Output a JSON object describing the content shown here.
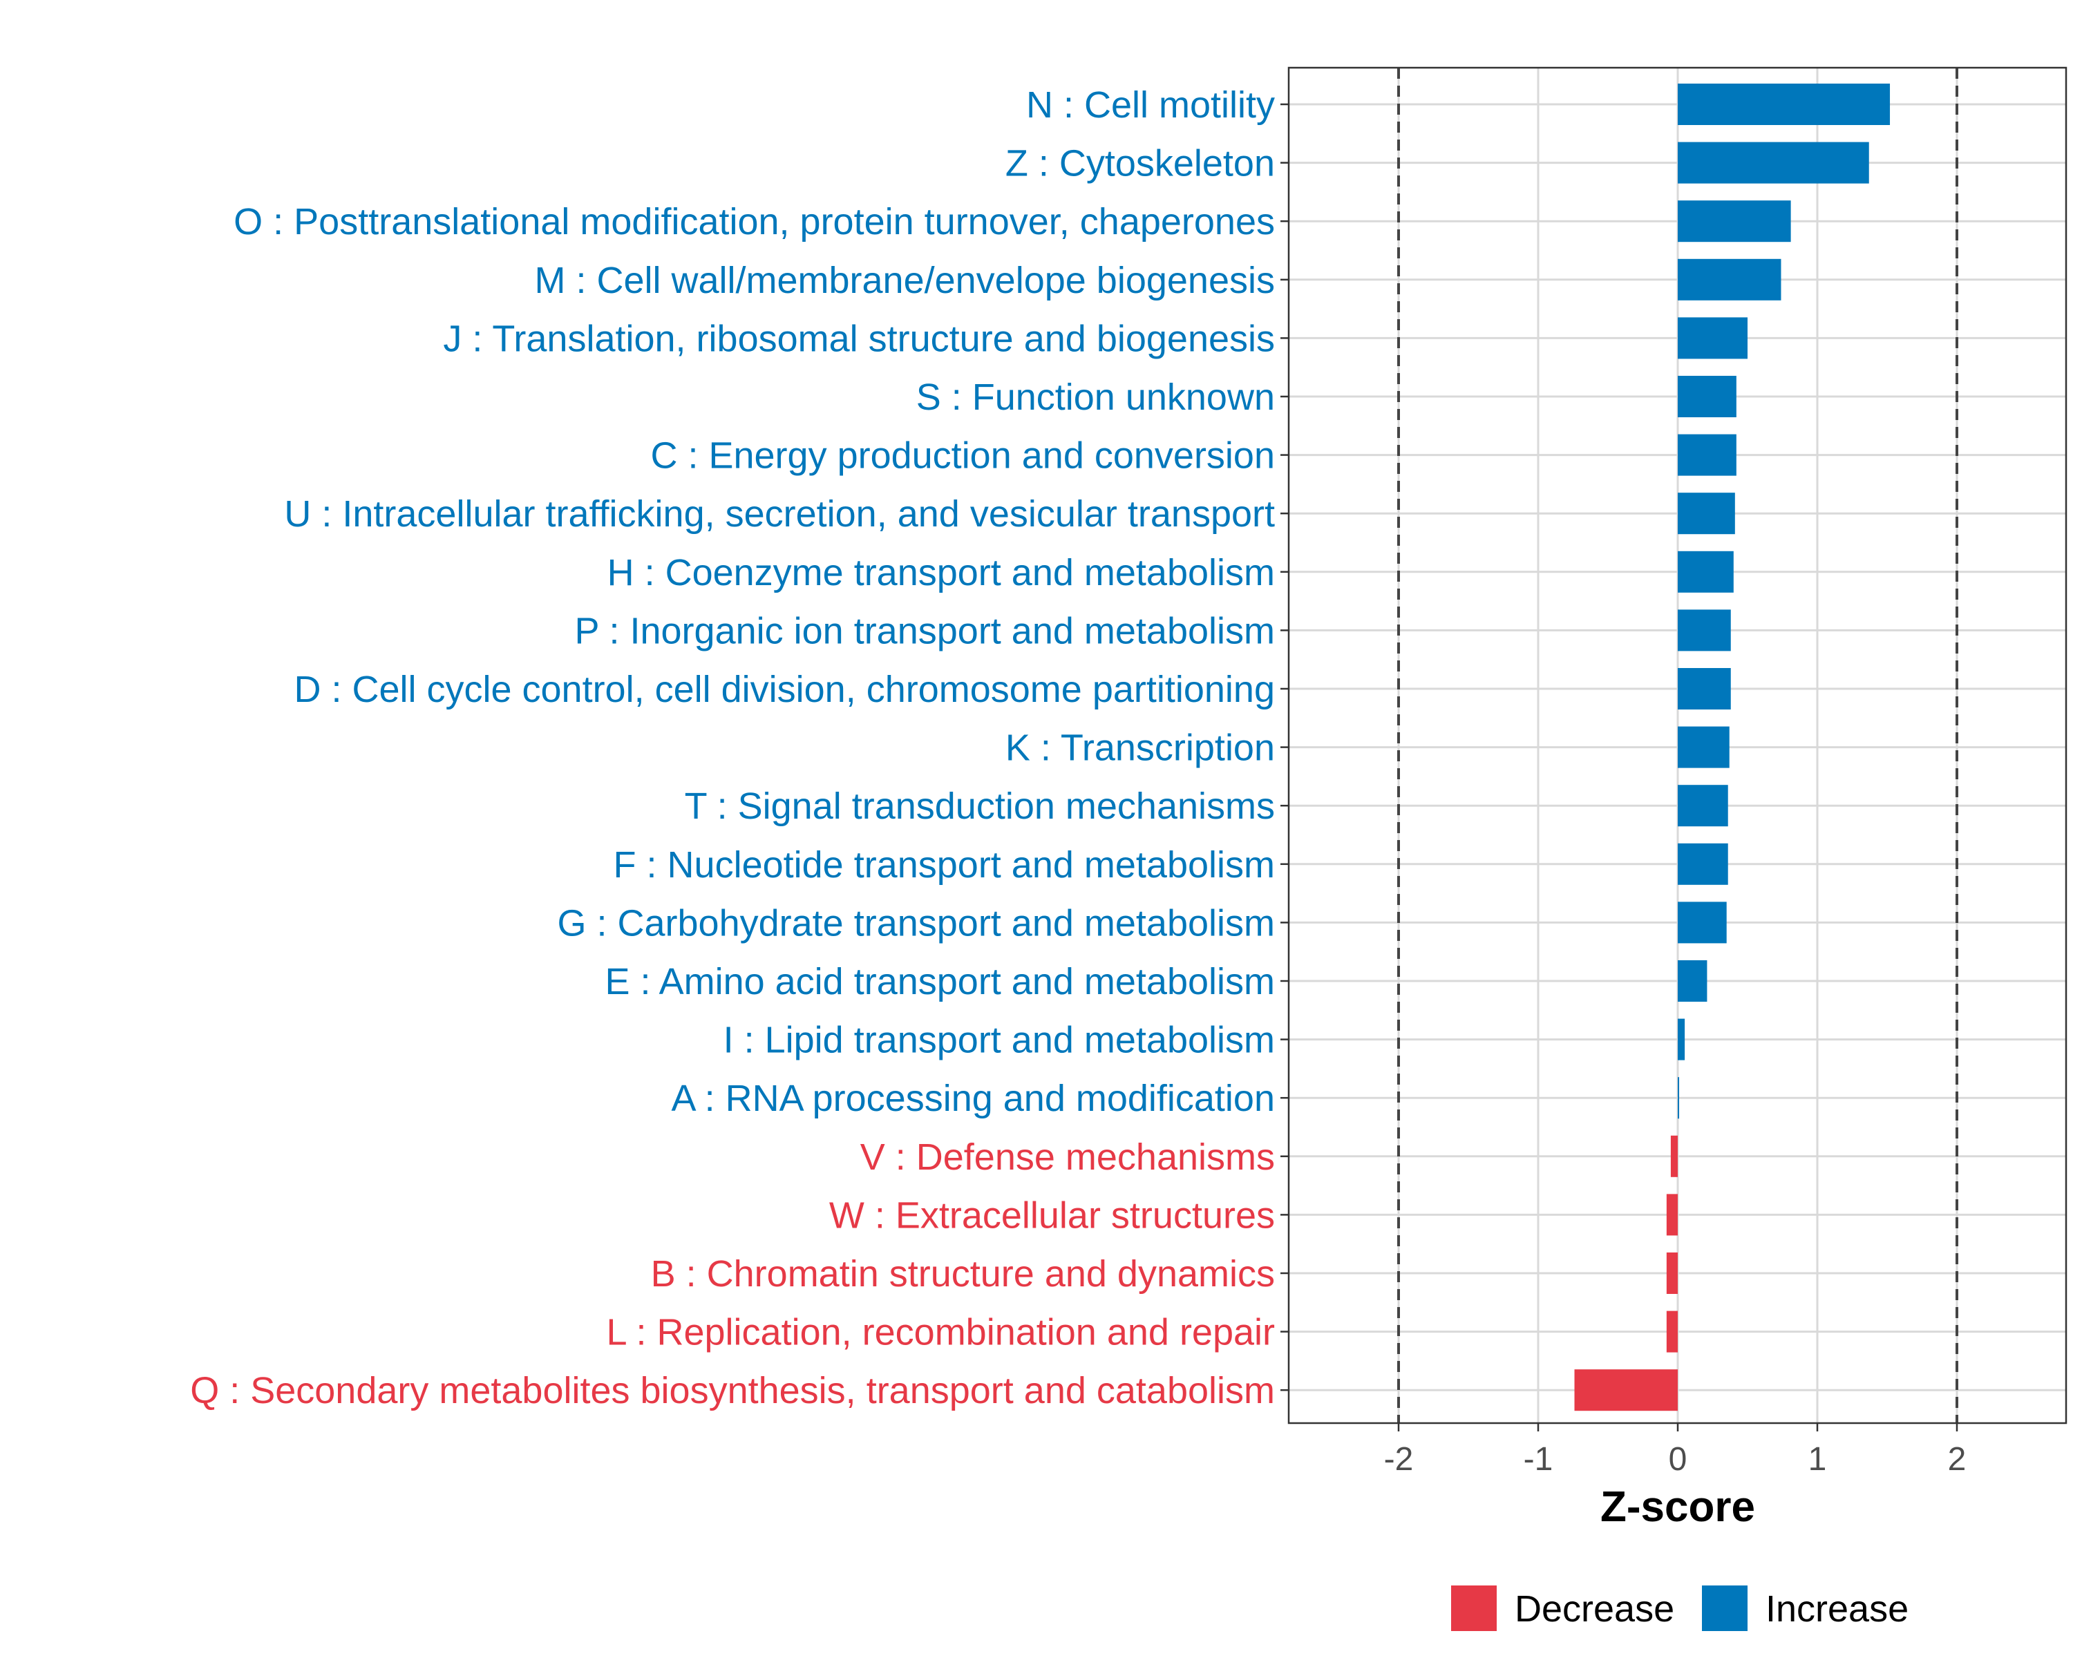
{
  "chart_data": {
    "type": "bar",
    "orientation": "horizontal",
    "xlabel": "Z-score",
    "xlim": [
      -2.78,
      2.78
    ],
    "x_ticks": [
      -2,
      -1,
      0,
      1,
      2
    ],
    "x_tick_labels": [
      "-2",
      "-1",
      "0",
      "1",
      "2"
    ],
    "reference_lines": [
      -2,
      2
    ],
    "grid": true,
    "legend_position": "bottom",
    "colors": {
      "Decrease": "#E63946",
      "Increase": "#0077BB"
    },
    "legend": [
      {
        "label": "Decrease",
        "color": "#E63946"
      },
      {
        "label": "Increase",
        "color": "#0077BB"
      }
    ],
    "categories": [
      "N : Cell motility",
      "Z : Cytoskeleton",
      "O : Posttranslational modification, protein turnover, chaperones",
      "M : Cell wall/membrane/envelope biogenesis",
      "J : Translation, ribosomal structure and biogenesis",
      "S : Function unknown",
      "C : Energy production and conversion",
      "U : Intracellular trafficking, secretion, and vesicular transport",
      "H : Coenzyme transport and metabolism",
      "P : Inorganic ion transport and metabolism",
      "D : Cell cycle control, cell division, chromosome partitioning",
      "K : Transcription",
      "T : Signal transduction mechanisms",
      "F : Nucleotide transport and metabolism",
      "G : Carbohydrate transport and metabolism",
      "E : Amino acid transport and metabolism",
      "I : Lipid transport and metabolism",
      "A : RNA processing and modification",
      "V : Defense mechanisms",
      "W : Extracellular structures",
      "B : Chromatin structure and dynamics",
      "L : Replication, recombination and repair",
      "Q : Secondary metabolites biosynthesis, transport and catabolism"
    ],
    "values": [
      1.52,
      1.37,
      0.81,
      0.74,
      0.5,
      0.42,
      0.42,
      0.41,
      0.4,
      0.38,
      0.38,
      0.37,
      0.36,
      0.36,
      0.35,
      0.21,
      0.05,
      0.01,
      -0.05,
      -0.08,
      -0.08,
      -0.08,
      -0.74
    ],
    "direction": [
      "Increase",
      "Increase",
      "Increase",
      "Increase",
      "Increase",
      "Increase",
      "Increase",
      "Increase",
      "Increase",
      "Increase",
      "Increase",
      "Increase",
      "Increase",
      "Increase",
      "Increase",
      "Increase",
      "Increase",
      "Increase",
      "Decrease",
      "Decrease",
      "Decrease",
      "Decrease",
      "Decrease"
    ]
  }
}
